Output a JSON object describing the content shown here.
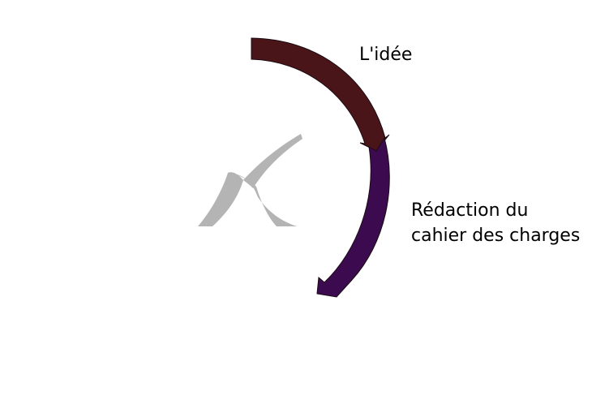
{
  "steps": [
    {
      "label": "L'idée",
      "color": "#4a1518"
    },
    {
      "label_lines": [
        "Rédaction du",
        "cahier des charges"
      ],
      "color": "#3c0a4e"
    }
  ],
  "logo": {
    "icon": "checkmark-logo-icon",
    "color": "#b4b4b4"
  },
  "outline_color": "#1a0a12"
}
